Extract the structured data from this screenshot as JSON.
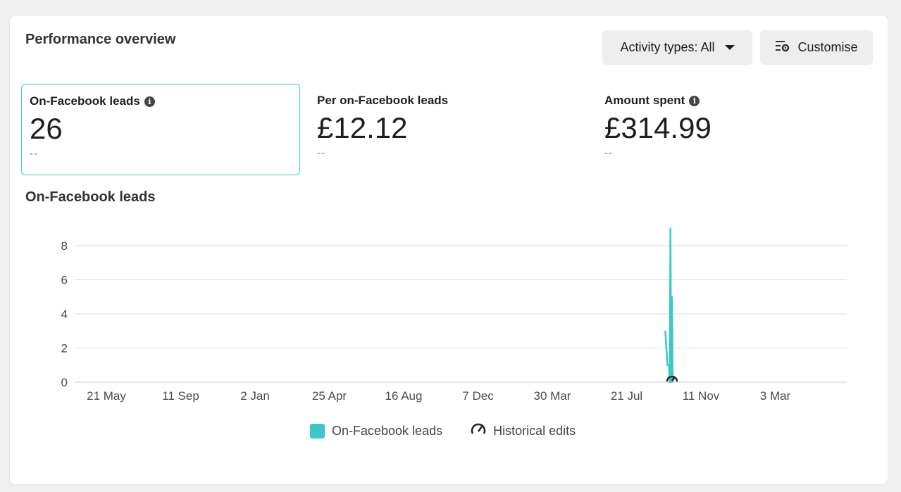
{
  "header": {
    "title": "Performance overview",
    "activity_label": "Activity types: All",
    "customise_label": "Customise"
  },
  "metrics": [
    {
      "label": "On-Facebook leads",
      "value": "26",
      "delta": "--",
      "has_info": true,
      "selected": true
    },
    {
      "label": "Per on-Facebook leads",
      "value": "£12.12",
      "delta": "--",
      "has_info": false,
      "selected": false
    },
    {
      "label": "Amount spent",
      "value": "£314.99",
      "delta": "--",
      "has_info": true,
      "selected": false
    }
  ],
  "chart_title": "On-Facebook leads",
  "chart_data": {
    "type": "line",
    "x_tick_labels": [
      "21 May",
      "11 Sep",
      "2 Jan",
      "25 Apr",
      "16 Aug",
      "7 Dec",
      "30 Mar",
      "21 Jul",
      "11 Nov",
      "3 Mar"
    ],
    "y_ticks": [
      0,
      2,
      4,
      6,
      8
    ],
    "ylim": [
      0,
      9
    ],
    "grid": true,
    "series": [
      {
        "name": "On-Facebook leads",
        "color": "#3cc8c6",
        "x_index": [
          7.52,
          7.55,
          7.57,
          7.58,
          7.59,
          7.6,
          7.61,
          7.62
        ],
        "values": [
          3,
          1,
          1,
          0,
          9,
          0,
          5,
          0
        ]
      }
    ],
    "legend": [
      "On-Facebook leads",
      "Historical edits"
    ],
    "legend_position": "bottom-center"
  },
  "icons": {
    "activity_caret": "caret-down-icon",
    "customise": "sliders-gear-icon",
    "info": "info-icon",
    "historical_edits": "gauge-edit-icon"
  }
}
